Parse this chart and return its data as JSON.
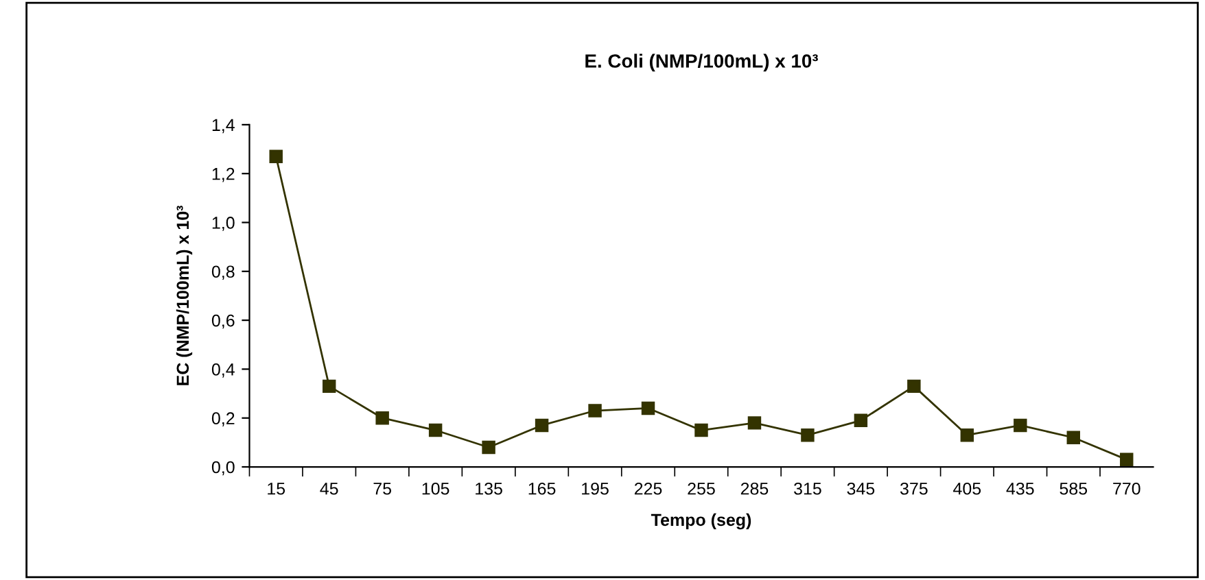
{
  "chart_data": {
    "type": "line",
    "title": "E. Coli (NMP/100mL) x 10³",
    "xlabel": "Tempo (seg)",
    "ylabel": "EC (NMP/100mL) x 10³",
    "categories": [
      "15",
      "45",
      "75",
      "105",
      "135",
      "165",
      "195",
      "225",
      "255",
      "285",
      "315",
      "345",
      "375",
      "405",
      "435",
      "585",
      "770"
    ],
    "series": [
      {
        "color": "#333300",
        "values": [
          1.27,
          0.33,
          0.2,
          0.15,
          0.08,
          0.17,
          0.23,
          0.24,
          0.15,
          0.18,
          0.13,
          0.19,
          0.33,
          0.13,
          0.17,
          0.12,
          0.03
        ]
      }
    ],
    "ylim": [
      0,
      1.4
    ],
    "yticks": [
      {
        "value": 0,
        "label": "0,0"
      },
      {
        "value": 0.2,
        "label": "0,2"
      },
      {
        "value": 0.4,
        "label": "0,4"
      },
      {
        "value": 0.6,
        "label": "0,6"
      },
      {
        "value": 0.8,
        "label": "0,8"
      },
      {
        "value": 1.0,
        "label": "1,0"
      },
      {
        "value": 1.2,
        "label": "1,2"
      },
      {
        "value": 1.4,
        "label": "1,4"
      }
    ],
    "marker": "square",
    "line_style": "solid",
    "grid": false
  }
}
